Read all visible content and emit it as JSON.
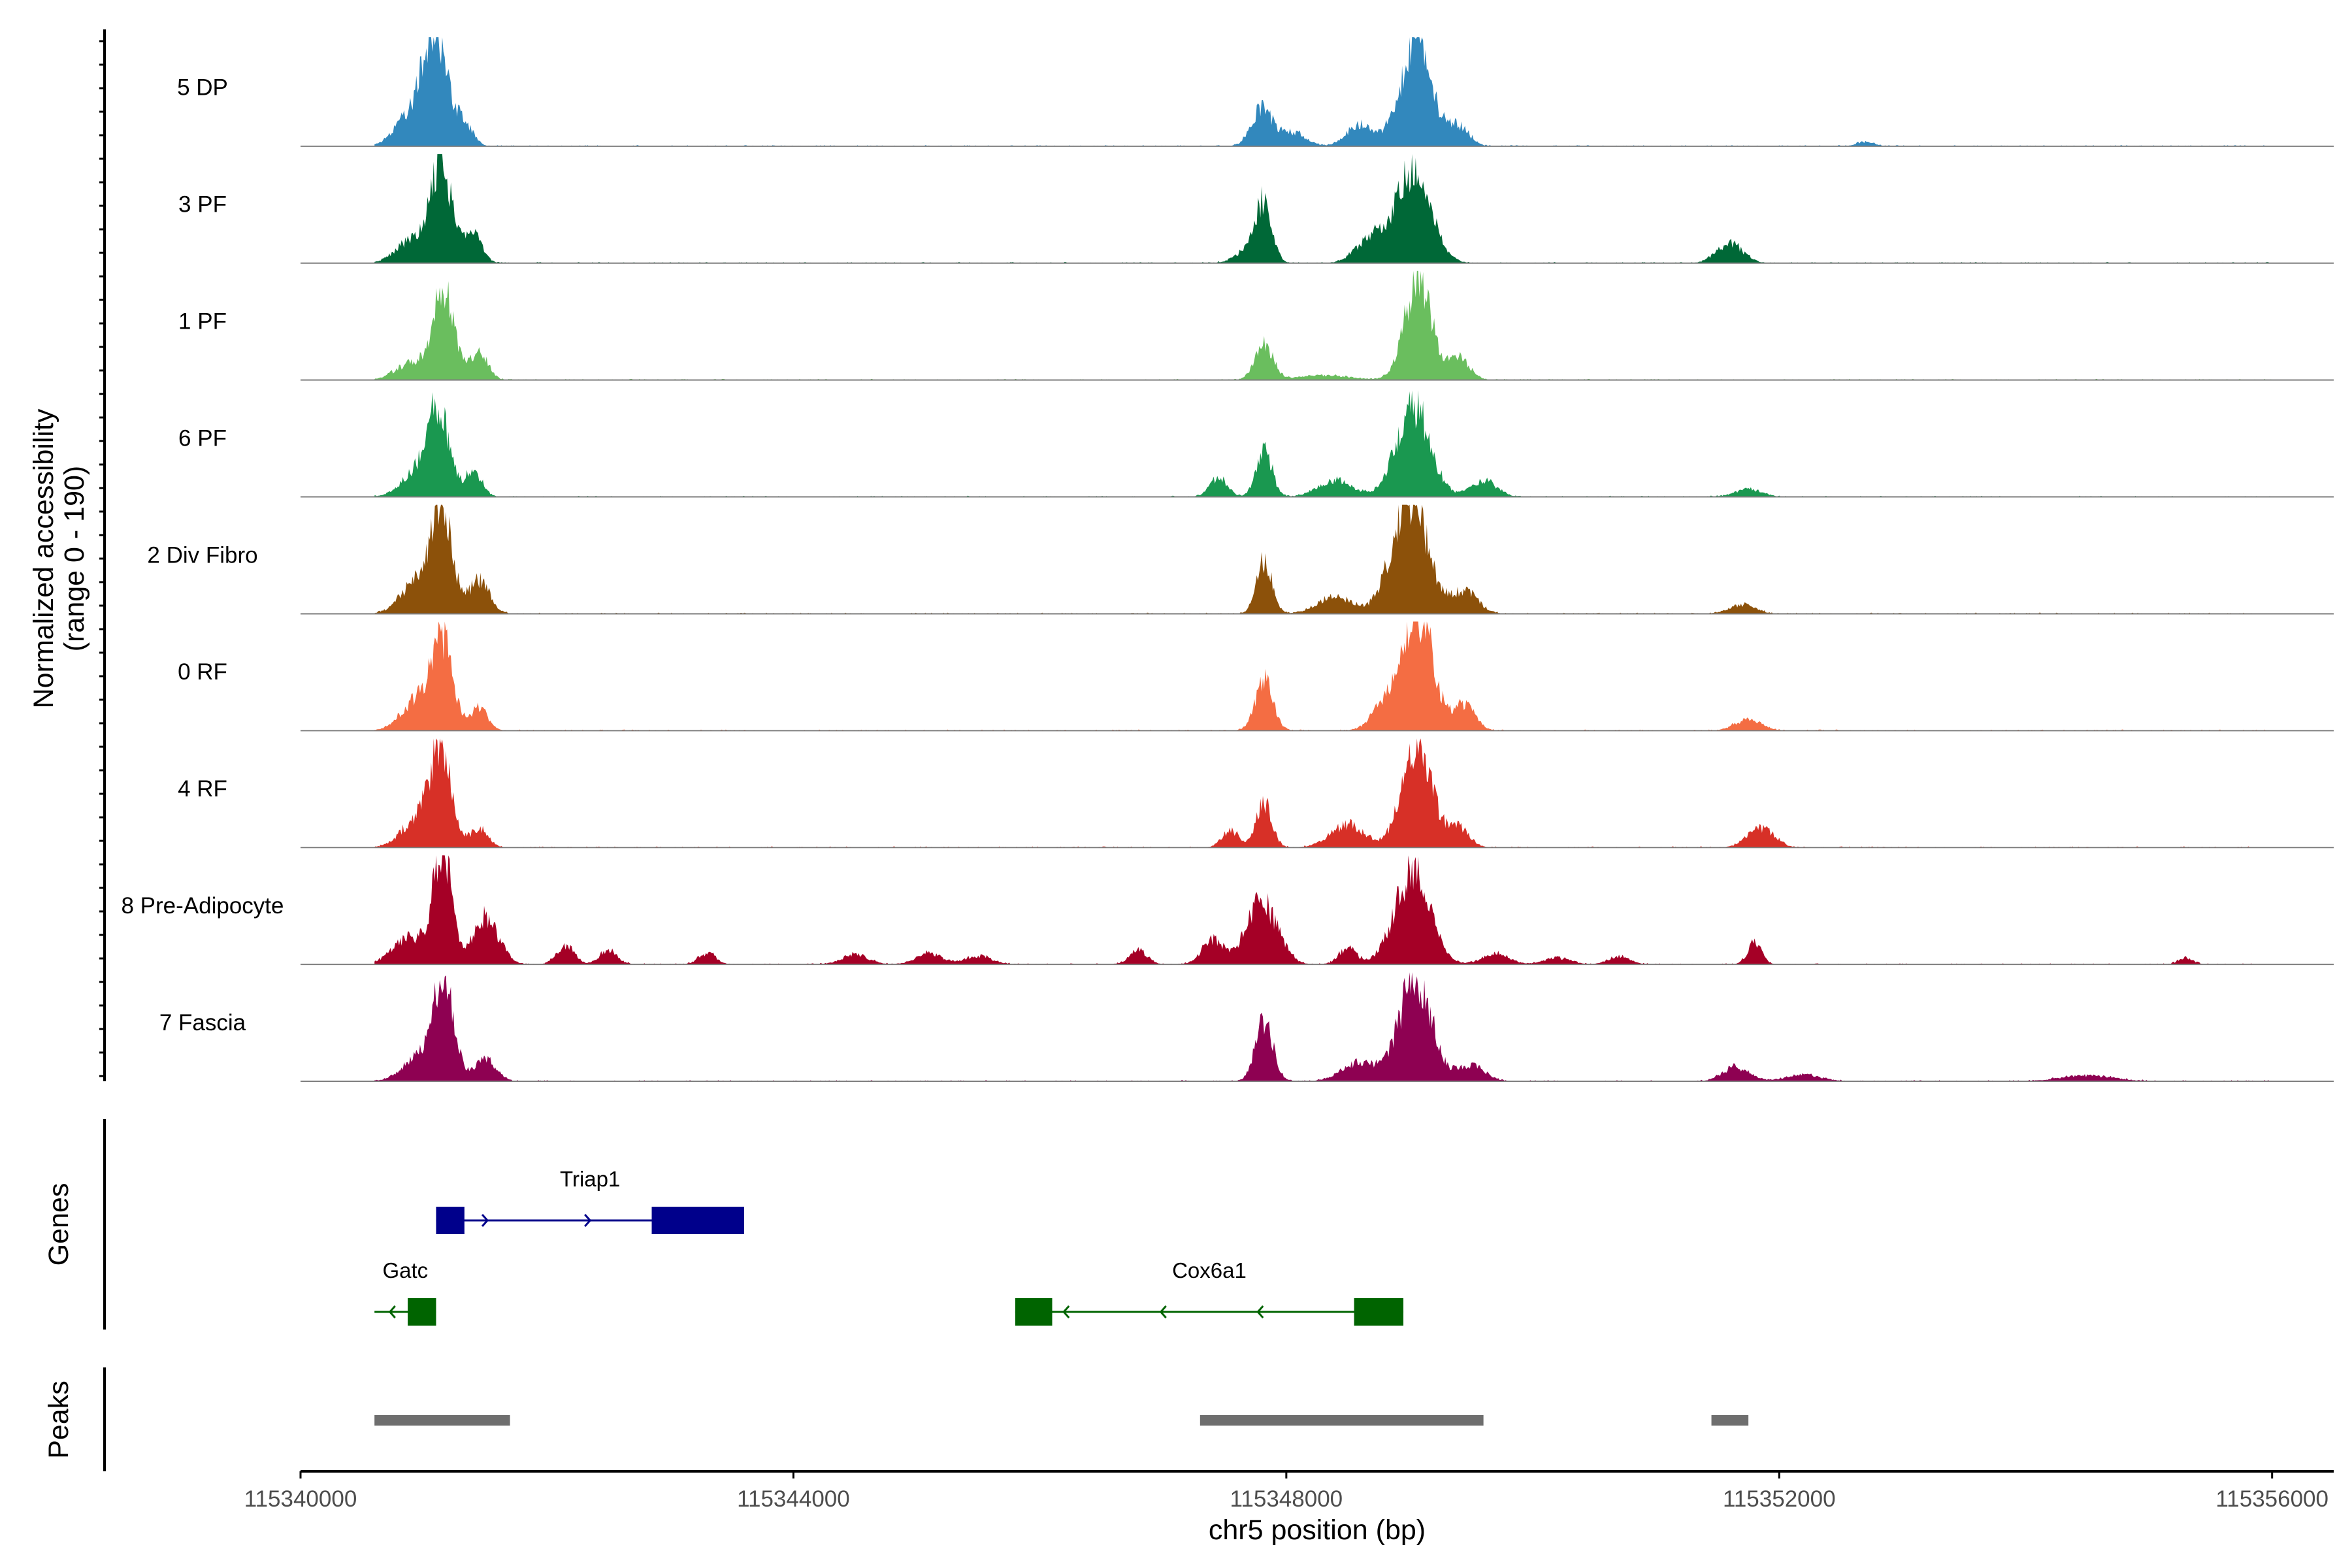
{
  "chart_data": {
    "type": "area",
    "title": "",
    "ylabel_line1": "Normalized accessibility",
    "ylabel_line2": "(range 0 - 190)",
    "y_range": [
      0,
      190
    ],
    "xlabel": "chr5 position (bp)",
    "x_range": [
      115340000,
      115356500
    ],
    "x_ticks": [
      115340000,
      115344000,
      115348000,
      115352000,
      115356000
    ],
    "x_tick_labels": [
      "115340000",
      "115344000",
      "115348000",
      "115352000",
      "115356000"
    ],
    "tracks": [
      {
        "name": "5 DP",
        "color": "#3288BD",
        "peaks": [
          [
            115340950,
            75,
            200
          ],
          [
            115341100,
            180,
            120
          ],
          [
            115341320,
            45,
            100
          ],
          [
            115347800,
            65,
            120
          ],
          [
            115348050,
            25,
            150
          ],
          [
            115348600,
            40,
            150
          ],
          [
            115349050,
            185,
            180
          ],
          [
            115349400,
            35,
            120
          ],
          [
            115352700,
            8,
            100
          ]
        ]
      },
      {
        "name": "3 PF",
        "color": "#006837",
        "peaks": [
          [
            115340900,
            40,
            180
          ],
          [
            115341140,
            175,
            120
          ],
          [
            115341400,
            55,
            100
          ],
          [
            115347700,
            25,
            150
          ],
          [
            115347820,
            100,
            90
          ],
          [
            115348700,
            45,
            180
          ],
          [
            115349030,
            160,
            200
          ],
          [
            115351600,
            35,
            150
          ]
        ]
      },
      {
        "name": "1 PF",
        "color": "#6ABE5E",
        "peaks": [
          [
            115340900,
            30,
            180
          ],
          [
            115341160,
            165,
            120
          ],
          [
            115341450,
            50,
            100
          ],
          [
            115347820,
            65,
            100
          ],
          [
            115348300,
            8,
            300
          ],
          [
            115349070,
            185,
            150
          ],
          [
            115349400,
            40,
            120
          ]
        ]
      },
      {
        "name": "6 PF",
        "color": "#1A9850",
        "peaks": [
          [
            115340950,
            45,
            180
          ],
          [
            115341120,
            150,
            120
          ],
          [
            115341400,
            45,
            100
          ],
          [
            115347450,
            35,
            100
          ],
          [
            115347820,
            85,
            90
          ],
          [
            115348400,
            30,
            200
          ],
          [
            115349030,
            165,
            190
          ],
          [
            115349600,
            30,
            150
          ],
          [
            115351750,
            14,
            150
          ]
        ]
      },
      {
        "name": "2 Div Fibro",
        "color": "#8C510A",
        "peaks": [
          [
            115340950,
            60,
            180
          ],
          [
            115341150,
            200,
            110
          ],
          [
            115341450,
            60,
            120
          ],
          [
            115347820,
            95,
            90
          ],
          [
            115348400,
            30,
            200
          ],
          [
            115349000,
            215,
            200
          ],
          [
            115349450,
            40,
            150
          ],
          [
            115351700,
            16,
            150
          ]
        ]
      },
      {
        "name": "0 RF",
        "color": "#F46D43",
        "peaks": [
          [
            115340950,
            55,
            180
          ],
          [
            115341150,
            155,
            120
          ],
          [
            115341450,
            40,
            100
          ],
          [
            115347820,
            90,
            100
          ],
          [
            115348800,
            45,
            150
          ],
          [
            115349070,
            210,
            170
          ],
          [
            115349450,
            45,
            120
          ],
          [
            115351750,
            20,
            150
          ]
        ]
      },
      {
        "name": "4 RF",
        "color": "#D73027",
        "peaks": [
          [
            115340950,
            50,
            180
          ],
          [
            115341140,
            170,
            120
          ],
          [
            115341450,
            35,
            100
          ],
          [
            115347550,
            30,
            100
          ],
          [
            115347820,
            80,
            90
          ],
          [
            115348500,
            40,
            200
          ],
          [
            115349060,
            190,
            170
          ],
          [
            115349400,
            35,
            120
          ],
          [
            115351850,
            35,
            150
          ]
        ]
      },
      {
        "name": "8 Pre-Adipocyte",
        "color": "#A50026",
        "peaks": [
          [
            115340900,
            50,
            200
          ],
          [
            115341150,
            210,
            100
          ],
          [
            115341500,
            85,
            150
          ],
          [
            115342150,
            35,
            100
          ],
          [
            115342500,
            25,
            100
          ],
          [
            115343300,
            20,
            100
          ],
          [
            115344500,
            18,
            150
          ],
          [
            115345100,
            20,
            150
          ],
          [
            115345500,
            15,
            150
          ],
          [
            115346800,
            25,
            100
          ],
          [
            115347400,
            45,
            120
          ],
          [
            115347800,
            110,
            180
          ],
          [
            115348500,
            30,
            100
          ],
          [
            115349020,
            165,
            200
          ],
          [
            115349700,
            20,
            150
          ],
          [
            115350200,
            12,
            150
          ],
          [
            115350700,
            15,
            120
          ],
          [
            115351800,
            40,
            80
          ],
          [
            115355300,
            12,
            80
          ]
        ]
      },
      {
        "name": "7 Fascia",
        "color": "#8E0152",
        "peaks": [
          [
            115340950,
            40,
            180
          ],
          [
            115341160,
            170,
            120
          ],
          [
            115341500,
            40,
            120
          ],
          [
            115347820,
            110,
            100
          ],
          [
            115348600,
            35,
            200
          ],
          [
            115349050,
            190,
            180
          ],
          [
            115349500,
            30,
            150
          ],
          [
            115351650,
            25,
            150
          ],
          [
            115352200,
            12,
            200
          ],
          [
            115354500,
            10,
            300
          ]
        ]
      }
    ],
    "genes": [
      {
        "name": "Triap1",
        "strand": "+",
        "color": "#00008B",
        "start": 115341100,
        "end": 115343600,
        "exons": [
          [
            115341100,
            115341330
          ],
          [
            115342850,
            115343600
          ]
        ]
      },
      {
        "name": "Gatc",
        "strand": "-",
        "color": "#006400",
        "start": 115340600,
        "end": 115341100,
        "exons": [
          [
            115340870,
            115341100
          ]
        ]
      },
      {
        "name": "Cox6a1",
        "strand": "-",
        "color": "#006400",
        "start": 115345800,
        "end": 115348950,
        "exons": [
          [
            115345800,
            115346100
          ],
          [
            115348550,
            115348950
          ]
        ]
      }
    ],
    "gene_panel_label": "Genes",
    "peaks": [
      [
        115340600,
        115341700
      ],
      [
        115347300,
        115349600
      ],
      [
        115351450,
        115351750
      ]
    ],
    "peaks_panel_label": "Peaks",
    "peak_color": "#6E6E6E"
  }
}
